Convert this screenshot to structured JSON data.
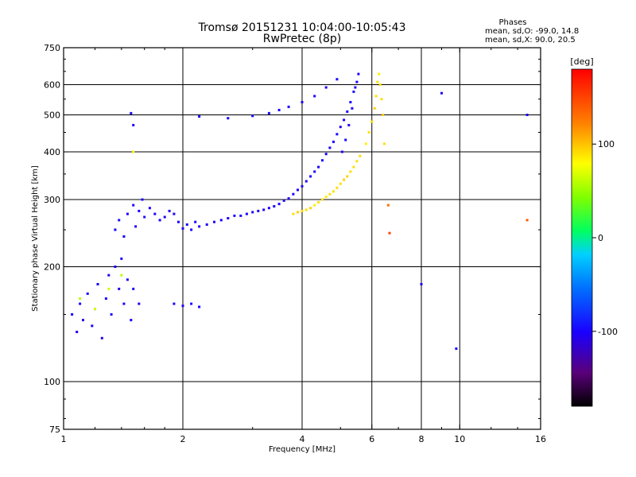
{
  "chart_data": {
    "type": "scatter",
    "title": "Tromsø 20151231 10:04:00-10:05:43",
    "subtitle": "RwPretec (8p)",
    "xlabel": "Frequency [MHz]",
    "ylabel": "Stationary phase Virtual Height [km]",
    "x_scale": "log",
    "y_scale": "log",
    "xlim": [
      1,
      16
    ],
    "ylim": [
      75,
      750
    ],
    "x_ticks": [
      1,
      2,
      4,
      6,
      8,
      10,
      16
    ],
    "y_ticks": [
      75,
      100,
      200,
      300,
      400,
      500,
      600,
      750
    ],
    "grid": true,
    "legend": {
      "title": "Phases",
      "lines": [
        "mean, sd,O: -99.0, 14.8",
        "mean, sd,X:  90.0, 20.5"
      ],
      "placement": "top-right"
    },
    "colorbar": {
      "label": "[deg]",
      "range": [
        -180,
        180
      ],
      "ticks": [
        100,
        0,
        -100
      ],
      "colormap": "rainbow"
    },
    "series": [
      {
        "name": "O",
        "color_hint": "#1a3cff",
        "points": [
          [
            1.05,
            150,
            -100
          ],
          [
            1.08,
            135,
            -105
          ],
          [
            1.1,
            160,
            -95
          ],
          [
            1.12,
            145,
            -110
          ],
          [
            1.15,
            170,
            -100
          ],
          [
            1.18,
            140,
            -100
          ],
          [
            1.2,
            155,
            -90
          ],
          [
            1.22,
            180,
            -100
          ],
          [
            1.25,
            130,
            -110
          ],
          [
            1.28,
            165,
            -100
          ],
          [
            1.3,
            190,
            -100
          ],
          [
            1.32,
            150,
            -95
          ],
          [
            1.35,
            200,
            -100
          ],
          [
            1.38,
            175,
            -105
          ],
          [
            1.4,
            210,
            -100
          ],
          [
            1.42,
            160,
            -100
          ],
          [
            1.45,
            185,
            -95
          ],
          [
            1.48,
            145,
            -100
          ],
          [
            1.5,
            175,
            -100
          ],
          [
            1.55,
            160,
            -110
          ],
          [
            1.35,
            250,
            -100
          ],
          [
            1.38,
            265,
            -95
          ],
          [
            1.42,
            240,
            -100
          ],
          [
            1.45,
            275,
            -100
          ],
          [
            1.5,
            290,
            -100
          ],
          [
            1.52,
            255,
            -105
          ],
          [
            1.55,
            280,
            -100
          ],
          [
            1.58,
            300,
            -100
          ],
          [
            1.6,
            270,
            -95
          ],
          [
            1.65,
            285,
            -100
          ],
          [
            1.7,
            275,
            -100
          ],
          [
            1.75,
            265,
            -100
          ],
          [
            1.8,
            270,
            -105
          ],
          [
            1.85,
            280,
            -100
          ],
          [
            1.9,
            275,
            -100
          ],
          [
            1.95,
            262,
            -100
          ],
          [
            2.0,
            252,
            -100
          ],
          [
            2.05,
            258,
            -95
          ],
          [
            2.1,
            250,
            -100
          ],
          [
            2.15,
            262,
            -100
          ],
          [
            2.2,
            255,
            -100
          ],
          [
            2.3,
            258,
            -105
          ],
          [
            2.4,
            262,
            -100
          ],
          [
            2.5,
            265,
            -100
          ],
          [
            2.6,
            268,
            -100
          ],
          [
            2.7,
            272,
            -95
          ],
          [
            2.8,
            272,
            -100
          ],
          [
            2.9,
            275,
            -100
          ],
          [
            3.0,
            278,
            -100
          ],
          [
            3.1,
            280,
            -100
          ],
          [
            3.2,
            282,
            -105
          ],
          [
            3.3,
            285,
            -100
          ],
          [
            3.4,
            288,
            -100
          ],
          [
            3.5,
            292,
            -100
          ],
          [
            3.6,
            298,
            -95
          ],
          [
            3.7,
            302,
            -100
          ],
          [
            3.8,
            310,
            -100
          ],
          [
            3.9,
            318,
            -100
          ],
          [
            4.0,
            325,
            -100
          ],
          [
            4.1,
            335,
            -105
          ],
          [
            4.2,
            345,
            -100
          ],
          [
            4.3,
            355,
            -100
          ],
          [
            4.4,
            365,
            -100
          ],
          [
            4.5,
            380,
            -95
          ],
          [
            4.6,
            395,
            -100
          ],
          [
            4.7,
            410,
            -100
          ],
          [
            4.8,
            425,
            -100
          ],
          [
            4.9,
            445,
            -100
          ],
          [
            5.0,
            465,
            -105
          ],
          [
            5.1,
            485,
            -100
          ],
          [
            5.2,
            510,
            -100
          ],
          [
            5.3,
            540,
            -100
          ],
          [
            5.4,
            575,
            -95
          ],
          [
            5.5,
            610,
            -100
          ],
          [
            5.55,
            640,
            -100
          ],
          [
            5.45,
            590,
            -100
          ],
          [
            5.35,
            520,
            -100
          ],
          [
            5.25,
            470,
            -100
          ],
          [
            5.15,
            430,
            -100
          ],
          [
            5.05,
            400,
            -100
          ],
          [
            2.2,
            495,
            -100
          ],
          [
            2.6,
            490,
            -100
          ],
          [
            3.0,
            497,
            -100
          ],
          [
            3.3,
            505,
            -95
          ],
          [
            3.5,
            515,
            -100
          ],
          [
            3.7,
            525,
            -100
          ],
          [
            4.0,
            540,
            -100
          ],
          [
            4.3,
            560,
            -100
          ],
          [
            4.6,
            590,
            -100
          ],
          [
            4.9,
            620,
            -100
          ],
          [
            1.9,
            160,
            -100
          ],
          [
            2.0,
            158,
            -100
          ],
          [
            2.1,
            160,
            -95
          ],
          [
            2.2,
            157,
            -100
          ],
          [
            1.5,
            470,
            -100
          ],
          [
            1.48,
            505,
            -100
          ],
          [
            9.0,
            570,
            -100
          ],
          [
            8.0,
            180,
            -100
          ],
          [
            9.8,
            122,
            -100
          ],
          [
            14.8,
            500,
            -100
          ]
        ]
      },
      {
        "name": "X",
        "color_hint": "#ffe600",
        "points": [
          [
            4.0,
            280,
            90
          ],
          [
            4.2,
            285,
            95
          ],
          [
            4.4,
            295,
            90
          ],
          [
            4.6,
            305,
            85
          ],
          [
            4.8,
            315,
            90
          ],
          [
            5.0,
            330,
            90
          ],
          [
            5.2,
            345,
            95
          ],
          [
            5.4,
            365,
            90
          ],
          [
            5.6,
            390,
            90
          ],
          [
            5.8,
            420,
            85
          ],
          [
            5.9,
            450,
            90
          ],
          [
            6.0,
            480,
            90
          ],
          [
            6.1,
            520,
            95
          ],
          [
            6.15,
            560,
            90
          ],
          [
            6.2,
            610,
            90
          ],
          [
            6.25,
            640,
            85
          ],
          [
            6.3,
            600,
            90
          ],
          [
            6.35,
            550,
            90
          ],
          [
            6.4,
            500,
            95
          ],
          [
            6.45,
            420,
            90
          ],
          [
            3.8,
            275,
            90
          ],
          [
            3.9,
            278,
            95
          ],
          [
            4.1,
            282,
            90
          ],
          [
            4.3,
            290,
            85
          ],
          [
            4.5,
            300,
            90
          ],
          [
            4.7,
            310,
            90
          ],
          [
            4.9,
            322,
            90
          ],
          [
            5.1,
            338,
            95
          ],
          [
            5.3,
            355,
            90
          ],
          [
            5.5,
            378,
            90
          ],
          [
            1.1,
            165,
            60
          ],
          [
            1.2,
            155,
            70
          ],
          [
            1.3,
            175,
            65
          ],
          [
            1.4,
            190,
            60
          ],
          [
            1.5,
            400,
            80
          ],
          [
            6.6,
            290,
            130
          ],
          [
            6.65,
            245,
            150
          ],
          [
            14.8,
            265,
            140
          ]
        ]
      }
    ]
  }
}
